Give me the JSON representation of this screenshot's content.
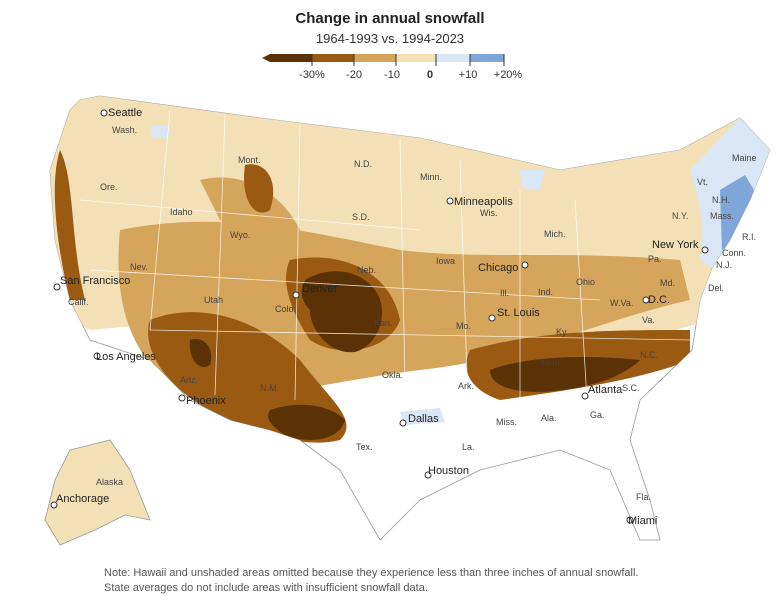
{
  "title": "Change in annual snowfall",
  "subtitle": "1964-1993 vs. 1994-2023",
  "legend": {
    "bins": [
      {
        "label": "-30%",
        "color": "#5a3205"
      },
      {
        "label": "-20",
        "color": "#9a5a12"
      },
      {
        "label": "-10",
        "color": "#d6a55c"
      },
      {
        "label": "0",
        "color": "#f3e0b6"
      },
      {
        "label": "+10",
        "color": "#d8e6f5"
      },
      {
        "label": "+20%",
        "color": "#7fa6d8"
      }
    ]
  },
  "map": {
    "cities": [
      "Seattle",
      "San Francisco",
      "Los Angeles",
      "Phoenix",
      "Denver",
      "Minneapolis",
      "Chicago",
      "St. Louis",
      "Dallas",
      "Houston",
      "Atlanta",
      "D.C.",
      "New York",
      "Miami",
      "Anchorage"
    ],
    "states": [
      "Wash.",
      "Ore.",
      "Calif.",
      "Idaho",
      "Nev.",
      "Utah",
      "Ariz.",
      "Mont.",
      "Wyo.",
      "Colo.",
      "N.M.",
      "N.D.",
      "S.D.",
      "Neb.",
      "Kan.",
      "Okla.",
      "Tex.",
      "Minn.",
      "Iowa",
      "Mo.",
      "Ark.",
      "La.",
      "Wis.",
      "Ill.",
      "Mich.",
      "Ind.",
      "Ky.",
      "Tenn.",
      "Miss.",
      "Ala.",
      "Ga.",
      "Fla.",
      "S.C.",
      "N.C.",
      "Va.",
      "W.Va.",
      "Ohio",
      "Pa.",
      "N.Y.",
      "Md.",
      "Del.",
      "N.J.",
      "Conn.",
      "R.I.",
      "Mass.",
      "Vt.",
      "N.H.",
      "Maine",
      "Alaska"
    ]
  },
  "note": "Note: Hawaii and unshaded areas omitted because they experience less than three inches of annual snowfall. State averages do not include areas with insufficient snowfall data."
}
